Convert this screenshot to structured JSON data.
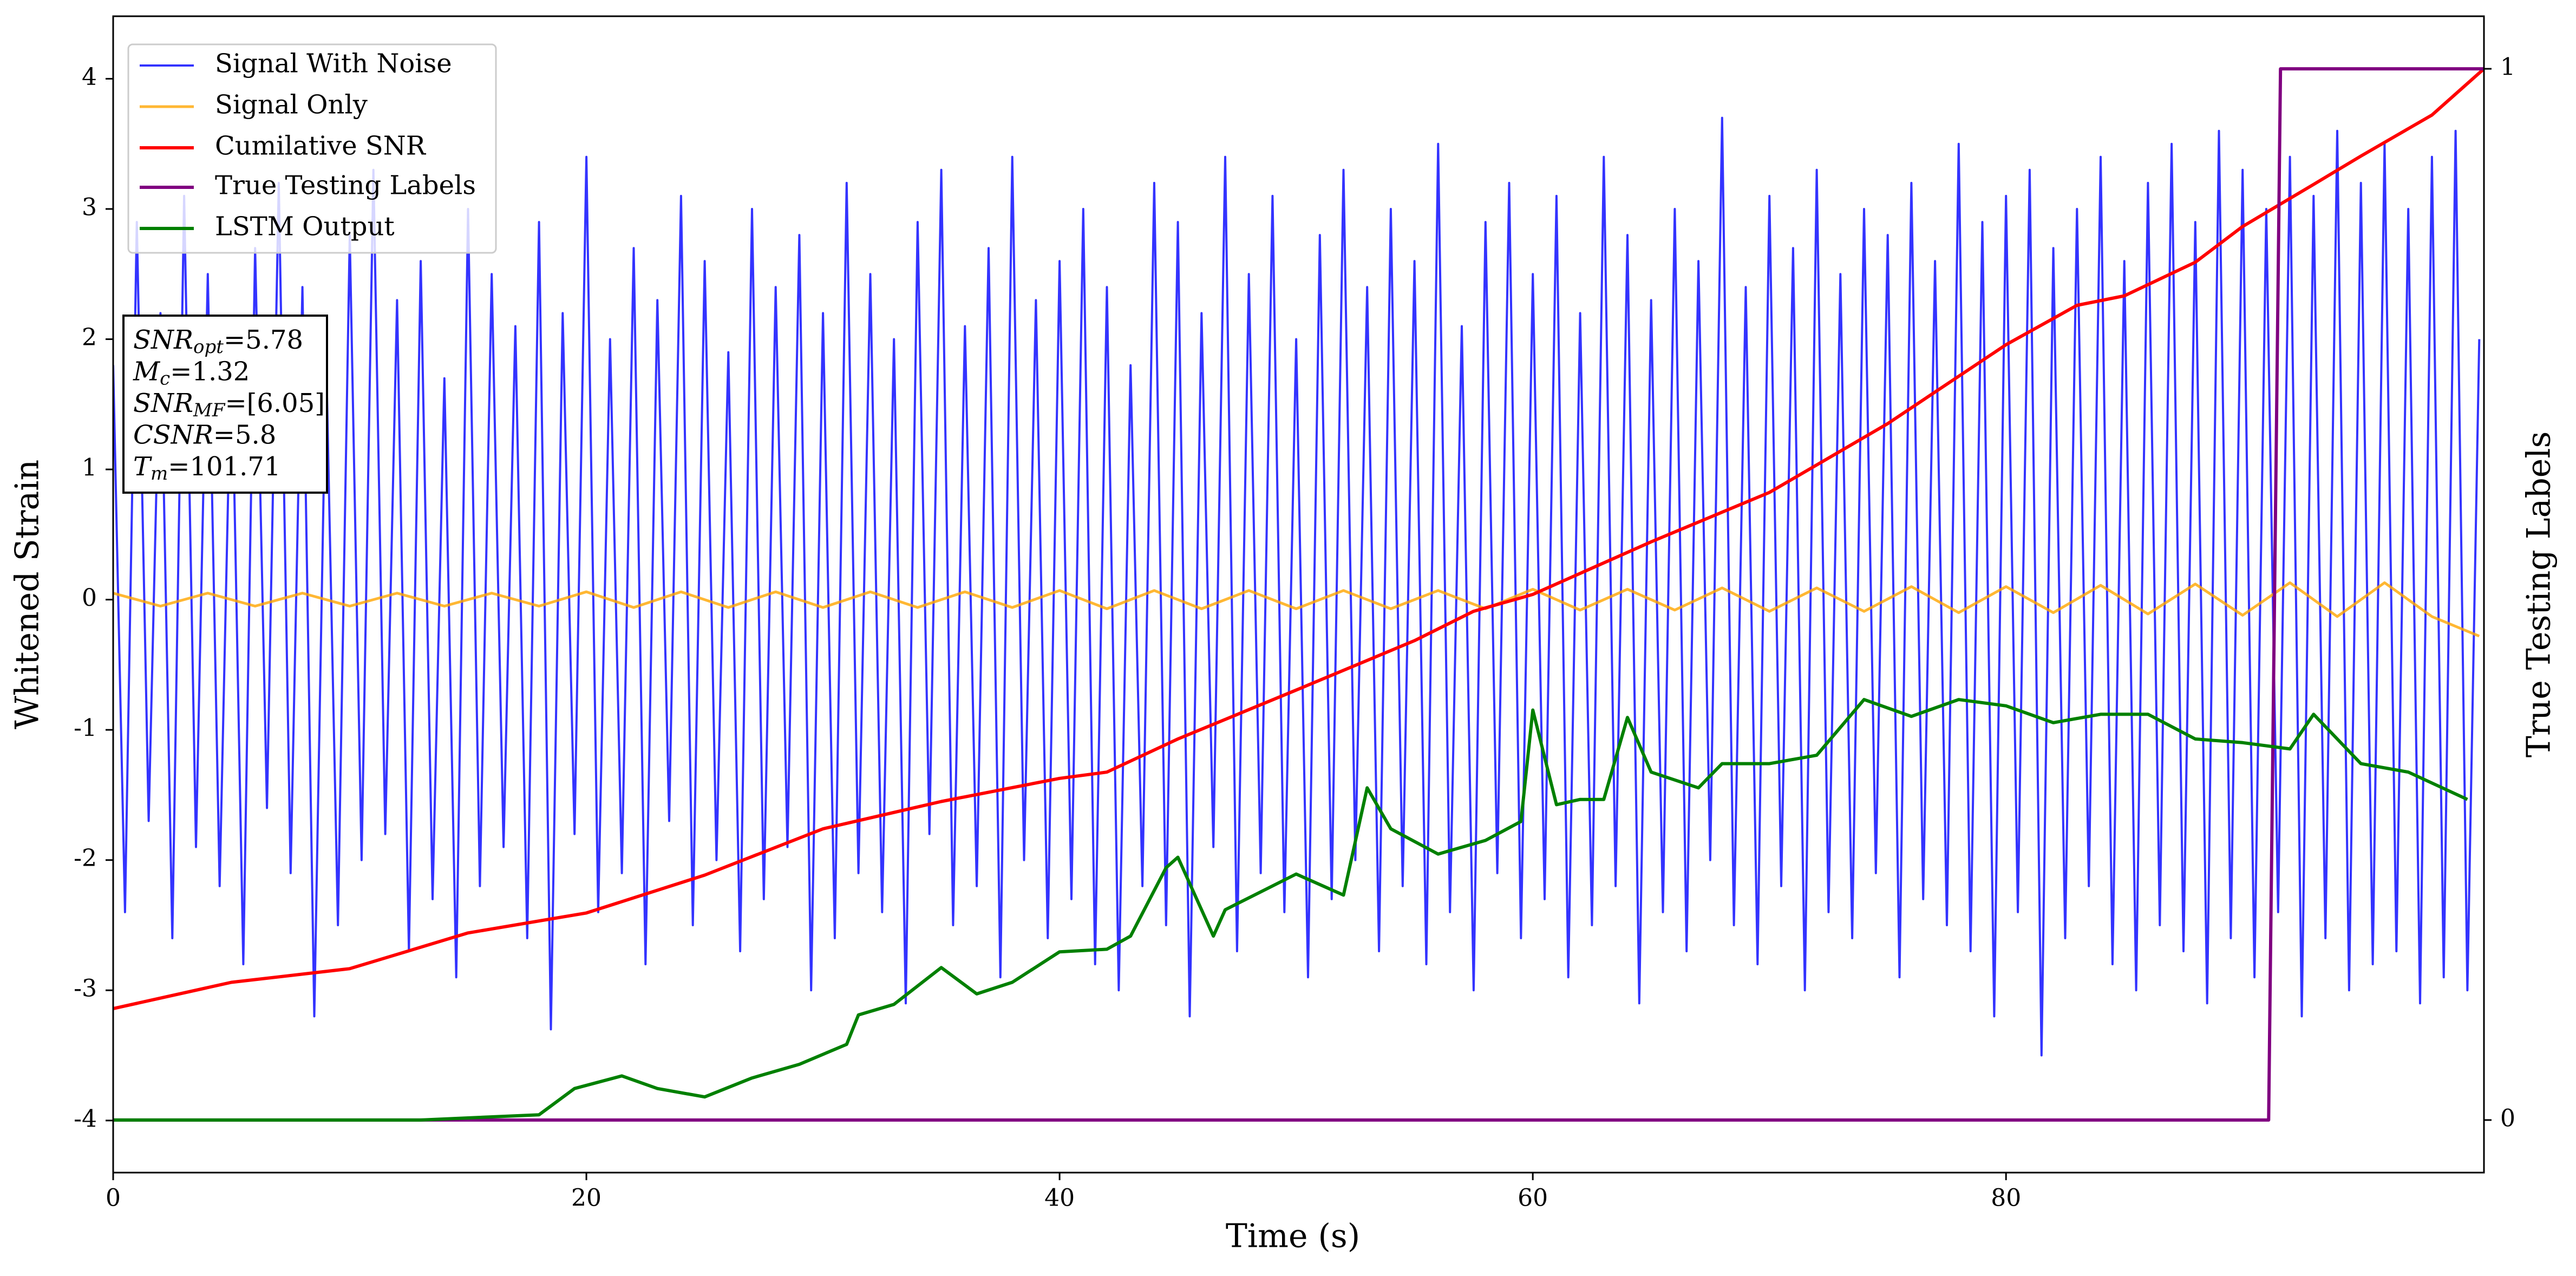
{
  "chart_data": {
    "type": "line",
    "xlabel": "Time (s)",
    "ylabel": "Whitened Strain",
    "y2label": "True Testing Labels",
    "xlim": [
      0,
      100.2
    ],
    "ylim": [
      -4.4,
      4.48
    ],
    "y2lim": [
      -0.05,
      1.05
    ],
    "xticks": [
      0,
      20,
      40,
      60,
      80
    ],
    "yticks": [
      -4,
      -3,
      -2,
      -1,
      0,
      1,
      2,
      3,
      4
    ],
    "y2ticks": [
      0,
      1
    ],
    "grid": false,
    "legend": "upper left",
    "annotation": [
      {
        "label": "SNR",
        "sub": "opt",
        "text": "=5.78"
      },
      {
        "label": "M",
        "sub": "c",
        "text": "=1.32"
      },
      {
        "label": "SNR",
        "sub": "MF",
        "text": "=[6.05]"
      },
      {
        "label": "CSNR",
        "sub": null,
        "text": "=5.8"
      },
      {
        "label": "T",
        "sub": "m",
        "text": "=101.71"
      }
    ],
    "series": [
      {
        "name": "Signal With Noise",
        "color": "#0000ff",
        "axis": "y",
        "x": [
          0,
          0.5,
          1,
          1.5,
          2,
          2.5,
          3,
          3.5,
          4,
          4.5,
          5,
          5.5,
          6,
          6.5,
          7,
          7.5,
          8,
          8.5,
          9,
          9.5,
          10,
          10.5,
          11,
          11.5,
          12,
          12.5,
          13,
          13.5,
          14,
          14.5,
          15,
          15.5,
          16,
          16.5,
          17,
          17.5,
          18,
          18.5,
          19,
          19.5,
          20,
          20.5,
          21,
          21.5,
          22,
          22.5,
          23,
          23.5,
          24,
          24.5,
          25,
          25.5,
          26,
          26.5,
          27,
          27.5,
          28,
          28.5,
          29,
          29.5,
          30,
          30.5,
          31,
          31.5,
          32,
          32.5,
          33,
          33.5,
          34,
          34.5,
          35,
          35.5,
          36,
          36.5,
          37,
          37.5,
          38,
          38.5,
          39,
          39.5,
          40,
          40.5,
          41,
          41.5,
          42,
          42.5,
          43,
          43.5,
          44,
          44.5,
          45,
          45.5,
          46,
          46.5,
          47,
          47.5,
          48,
          48.5,
          49,
          49.5,
          50,
          50.5,
          51,
          51.5,
          52,
          52.5,
          53,
          53.5,
          54,
          54.5,
          55,
          55.5,
          56,
          56.5,
          57,
          57.5,
          58,
          58.5,
          59,
          59.5,
          60,
          60.5,
          61,
          61.5,
          62,
          62.5,
          63,
          63.5,
          64,
          64.5,
          65,
          65.5,
          66,
          66.5,
          67,
          67.5,
          68,
          68.5,
          69,
          69.5,
          70,
          70.5,
          71,
          71.5,
          72,
          72.5,
          73,
          73.5,
          74,
          74.5,
          75,
          75.5,
          76,
          76.5,
          77,
          77.5,
          78,
          78.5,
          79,
          79.5,
          80,
          80.5,
          81,
          81.5,
          82,
          82.5,
          83,
          83.5,
          84,
          84.5,
          85,
          85.5,
          86,
          86.5,
          87,
          87.5,
          88,
          88.5,
          89,
          89.5,
          90,
          90.5,
          91,
          91.5,
          92,
          92.5,
          93,
          93.5,
          94,
          94.5,
          95,
          95.5,
          96,
          96.5,
          97,
          97.5,
          98,
          98.5,
          99,
          99.5,
          100
        ],
        "values": [
          1.8,
          -2.4,
          2.9,
          -1.7,
          2.2,
          -2.6,
          3.1,
          -1.9,
          2.5,
          -2.2,
          2.0,
          -2.8,
          2.7,
          -1.6,
          3.2,
          -2.1,
          2.4,
          -3.2,
          1.9,
          -2.5,
          2.8,
          -2.0,
          3.3,
          -1.8,
          2.3,
          -2.7,
          2.6,
          -2.3,
          1.7,
          -2.9,
          3.0,
          -2.2,
          2.5,
          -1.9,
          2.1,
          -2.6,
          2.9,
          -3.3,
          2.2,
          -1.8,
          3.4,
          -2.4,
          2.0,
          -2.1,
          2.7,
          -2.8,
          2.3,
          -1.7,
          3.1,
          -2.5,
          2.6,
          -2.0,
          1.9,
          -2.7,
          3.0,
          -2.3,
          2.4,
          -1.9,
          2.8,
          -3.0,
          2.2,
          -2.6,
          3.2,
          -2.1,
          2.5,
          -2.4,
          2.0,
          -3.1,
          2.9,
          -1.8,
          3.3,
          -2.5,
          2.1,
          -2.2,
          2.7,
          -2.9,
          3.4,
          -2.0,
          2.3,
          -2.6,
          2.6,
          -2.3,
          3.0,
          -2.8,
          2.4,
          -3.0,
          1.8,
          -2.2,
          3.2,
          -2.5,
          2.9,
          -3.2,
          2.2,
          -1.9,
          3.4,
          -2.7,
          2.5,
          -2.1,
          3.1,
          -2.4,
          2.0,
          -2.9,
          2.8,
          -2.3,
          3.3,
          -2.0,
          2.4,
          -2.7,
          3.0,
          -2.2,
          2.6,
          -2.8,
          3.5,
          -2.4,
          2.1,
          -3.0,
          2.9,
          -2.1,
          3.2,
          -2.6,
          2.5,
          -2.3,
          3.1,
          -2.9,
          2.2,
          -2.5,
          3.4,
          -2.2,
          2.8,
          -3.1,
          2.3,
          -2.4,
          3.0,
          -2.7,
          2.6,
          -2.0,
          3.7,
          -2.5,
          2.4,
          -2.8,
          3.1,
          -2.2,
          2.7,
          -3.0,
          3.3,
          -2.4,
          2.5,
          -2.6,
          3.0,
          -2.1,
          2.8,
          -2.9,
          3.2,
          -2.3,
          2.6,
          -2.5,
          3.5,
          -2.7,
          2.9,
          -3.2,
          3.1,
          -2.4,
          3.3,
          -3.5,
          2.7,
          -2.6,
          3.0,
          -2.2,
          3.4,
          -2.8,
          2.6,
          -3.0,
          3.2,
          -2.5,
          3.5,
          -2.7,
          2.9,
          -3.1,
          3.6,
          -2.6,
          3.3,
          -2.9,
          3.0,
          -2.4,
          3.4,
          -3.2,
          3.1,
          -2.6,
          3.6,
          -3.0,
          3.2,
          -2.8,
          3.5,
          -2.7,
          3.0,
          -3.1,
          3.4,
          -2.9,
          3.6,
          -3.0,
          2.0
        ]
      },
      {
        "name": "Signal Only",
        "color": "#ffa500",
        "axis": "y",
        "x": [
          0,
          2,
          4,
          6,
          8,
          10,
          12,
          14,
          16,
          18,
          20,
          22,
          24,
          26,
          28,
          30,
          32,
          34,
          36,
          38,
          40,
          42,
          44,
          46,
          48,
          50,
          52,
          54,
          56,
          58,
          60,
          62,
          64,
          66,
          68,
          70,
          72,
          74,
          76,
          78,
          80,
          82,
          84,
          86,
          88,
          90,
          92,
          94,
          96,
          98,
          100
        ],
        "values": [
          0.05,
          -0.05,
          0.05,
          -0.05,
          0.05,
          -0.05,
          0.05,
          -0.05,
          0.05,
          -0.05,
          0.06,
          -0.06,
          0.06,
          -0.06,
          0.06,
          -0.06,
          0.06,
          -0.06,
          0.06,
          -0.06,
          0.07,
          -0.07,
          0.07,
          -0.07,
          0.07,
          -0.07,
          0.07,
          -0.07,
          0.07,
          -0.07,
          0.08,
          -0.08,
          0.08,
          -0.08,
          0.09,
          -0.09,
          0.09,
          -0.09,
          0.1,
          -0.1,
          0.1,
          -0.1,
          0.11,
          -0.11,
          0.12,
          -0.12,
          0.13,
          -0.13,
          0.13,
          -0.13,
          -0.28
        ]
      },
      {
        "name": "Cumilative SNR",
        "color": "#ff0000",
        "axis": "y2",
        "x": [
          0,
          5,
          10,
          15,
          20,
          25,
          30,
          35,
          40,
          42,
          45,
          50,
          55,
          57.5,
          60,
          65,
          70,
          75,
          80,
          83,
          85,
          88,
          90,
          93,
          95,
          98,
          100.2
        ],
        "values": [
          0.106,
          0.131,
          0.144,
          0.178,
          0.197,
          0.233,
          0.277,
          0.303,
          0.325,
          0.331,
          0.3625,
          0.409,
          0.456,
          0.484,
          0.5,
          0.55,
          0.597,
          0.6625,
          0.7375,
          0.775,
          0.784,
          0.816,
          0.85,
          0.89,
          0.917,
          0.956,
          1.0
        ]
      },
      {
        "name": "True Testing Labels",
        "color": "#800080",
        "axis": "y2",
        "x": [
          0,
          91.1,
          91.6,
          100.2
        ],
        "values": [
          0,
          0,
          1,
          1
        ]
      },
      {
        "name": "LSTM Output",
        "color": "#008000",
        "axis": "y2",
        "x": [
          0,
          13,
          15,
          18,
          19.5,
          21.5,
          23,
          25,
          27,
          29,
          31,
          31.5,
          33,
          35,
          36.5,
          38,
          40,
          42,
          43,
          44.5,
          45,
          46.5,
          47,
          50,
          52,
          53,
          54,
          56,
          58,
          59.5,
          60,
          61,
          62,
          63,
          64,
          65,
          67,
          68,
          70,
          72,
          74,
          76,
          78,
          80,
          82,
          84,
          86,
          88,
          90,
          92,
          93,
          95,
          97,
          99.5
        ],
        "values": [
          0,
          0,
          0.002,
          0.005,
          0.03,
          0.042,
          0.03,
          0.022,
          0.04,
          0.053,
          0.072,
          0.1,
          0.11,
          0.145,
          0.12,
          0.131,
          0.16,
          0.1625,
          0.175,
          0.24,
          0.25,
          0.175,
          0.2,
          0.234,
          0.214,
          0.316,
          0.277,
          0.253,
          0.266,
          0.284,
          0.39,
          0.3,
          0.305,
          0.305,
          0.383,
          0.331,
          0.316,
          0.339,
          0.339,
          0.347,
          0.4,
          0.384,
          0.4,
          0.394,
          0.378,
          0.386,
          0.386,
          0.3625,
          0.359,
          0.353,
          0.386,
          0.339,
          0.331,
          0.305
        ]
      }
    ]
  }
}
